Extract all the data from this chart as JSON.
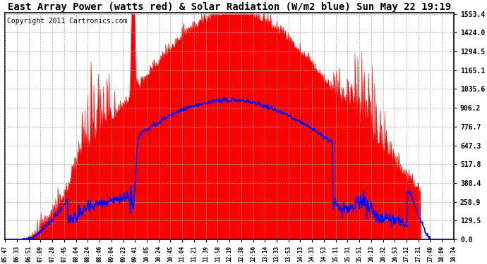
{
  "title": "East Array Power (watts red) & Solar Radiation (W/m2 blue) Sun May 22 19:19",
  "copyright": "Copyright 2011 Cartronics.com",
  "yticks": [
    0.0,
    129.5,
    258.9,
    388.4,
    517.8,
    647.3,
    776.7,
    906.2,
    1035.6,
    1165.1,
    1294.5,
    1424.0,
    1553.4
  ],
  "ymax": 1553.4,
  "ymin": 0.0,
  "bg_color": "#ffffff",
  "grid_color": "#aaaaaa",
  "fill_color_red": "#ff0000",
  "line_color_blue": "#0000ff",
  "title_fontsize": 10,
  "copyright_fontsize": 7,
  "x_labels": [
    "05:47",
    "06:33",
    "06:51",
    "07:09",
    "07:28",
    "07:45",
    "08:04",
    "08:24",
    "08:46",
    "09:04",
    "09:23",
    "09:41",
    "10:05",
    "10:24",
    "10:45",
    "11:04",
    "11:21",
    "11:39",
    "11:58",
    "12:19",
    "12:38",
    "12:56",
    "13:14",
    "13:33",
    "13:53",
    "14:13",
    "14:33",
    "14:53",
    "15:11",
    "15:31",
    "15:51",
    "16:13",
    "16:32",
    "16:53",
    "17:12",
    "17:31",
    "17:49",
    "18:09",
    "18:34"
  ],
  "n_points": 800
}
